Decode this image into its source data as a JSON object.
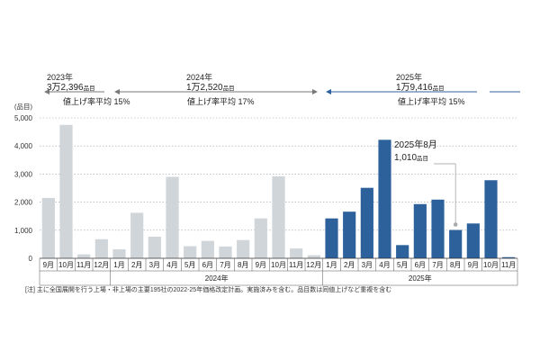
{
  "summaries": [
    {
      "year": "2023年",
      "count_main": "3万2,396",
      "count_unit": "品目",
      "rate": "値上げ率平均 15%",
      "arrow": "left"
    },
    {
      "year": "2024年",
      "count_main": "1万2,520",
      "count_unit": "品目",
      "rate": "値上げ率平均 17%",
      "arrow": "both"
    },
    {
      "year": "2025年",
      "count_main": "1万9,416",
      "count_unit": "品目",
      "rate": "値上げ率平均 15%",
      "arrow": "left-dashed"
    }
  ],
  "y_unit_label": "(品目)",
  "callout": {
    "line1": "2025年8月",
    "line2_main": "1,010",
    "line2_unit": "品目"
  },
  "note": "[注] 主に全国展開を行う上場・非上場の主要195社の2022-25年価格改定計画。実施済みを含む。品目数は同値上げなど重複を含む",
  "chart_data": {
    "type": "bar",
    "categories": [
      "9月",
      "10月",
      "11月",
      "12月",
      "1月",
      "2月",
      "3月",
      "4月",
      "5月",
      "6月",
      "7月",
      "8月",
      "9月",
      "10月",
      "11月",
      "12月",
      "1月",
      "2月",
      "3月",
      "4月",
      "5月",
      "6月",
      "7月",
      "8月",
      "9月",
      "10月",
      "11月"
    ],
    "groups": [
      {
        "label": "",
        "start": 0,
        "end": 3
      },
      {
        "label": "2024年",
        "start": 4,
        "end": 15
      },
      {
        "label": "2025年",
        "start": 16,
        "end": 26
      }
    ],
    "values": [
      2150,
      4750,
      140,
      680,
      320,
      1620,
      770,
      2900,
      430,
      620,
      420,
      650,
      1420,
      2920,
      350,
      110,
      1420,
      1660,
      2510,
      4220,
      470,
      1930,
      2090,
      1010,
      1240,
      2780,
      40
    ],
    "ylim": [
      0,
      5000
    ],
    "yticks": [
      0,
      1000,
      2000,
      3000,
      4000,
      5000
    ],
    "ytick_labels": [
      "0",
      "1,000",
      "2,000",
      "3,000",
      "4,000",
      "5,000"
    ],
    "colors": {
      "past": "#cfd5d9",
      "current": "#2c619b",
      "past_arrow": "#777777",
      "current_arrow": "#2c619b"
    },
    "highlight_index": 23
  }
}
